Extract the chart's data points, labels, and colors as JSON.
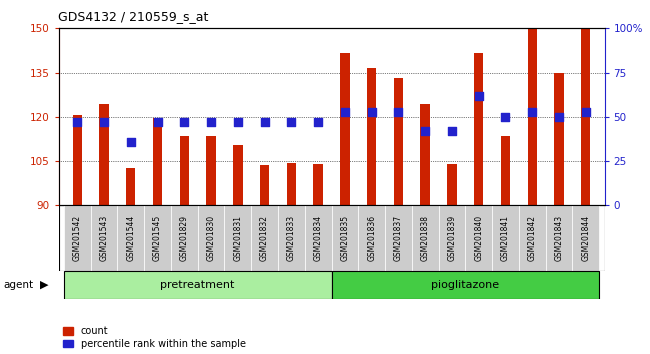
{
  "title": "GDS4132 / 210559_s_at",
  "samples": [
    "GSM201542",
    "GSM201543",
    "GSM201544",
    "GSM201545",
    "GSM201829",
    "GSM201830",
    "GSM201831",
    "GSM201832",
    "GSM201833",
    "GSM201834",
    "GSM201835",
    "GSM201836",
    "GSM201837",
    "GSM201838",
    "GSM201839",
    "GSM201840",
    "GSM201841",
    "GSM201842",
    "GSM201843",
    "GSM201844"
  ],
  "counts": [
    120.5,
    124.5,
    102.5,
    119.5,
    113.5,
    113.5,
    110.5,
    103.5,
    104.5,
    104.0,
    141.5,
    136.5,
    133.0,
    124.5,
    104.0,
    141.5,
    113.5,
    150.0,
    135.0,
    150.0
  ],
  "percentiles": [
    47,
    47,
    36,
    47,
    47,
    47,
    47,
    47,
    47,
    47,
    53,
    53,
    53,
    42,
    42,
    62,
    50,
    53,
    50,
    53
  ],
  "group_labels": [
    "pretreatment",
    "pioglitazone"
  ],
  "n_group1": 10,
  "n_group2": 10,
  "ylim_left": [
    90,
    150
  ],
  "ylim_right": [
    0,
    100
  ],
  "yticks_left": [
    90,
    105,
    120,
    135,
    150
  ],
  "yticks_right": [
    0,
    25,
    50,
    75,
    100
  ],
  "bar_color": "#cc2200",
  "dot_color": "#2222cc",
  "group1_bg": "#aaeea0",
  "group2_bg": "#44cc44",
  "sample_bg": "#cccccc",
  "bar_width": 0.35,
  "dot_size": 30,
  "left_axis_color": "#cc2200",
  "right_axis_color": "#2222cc"
}
